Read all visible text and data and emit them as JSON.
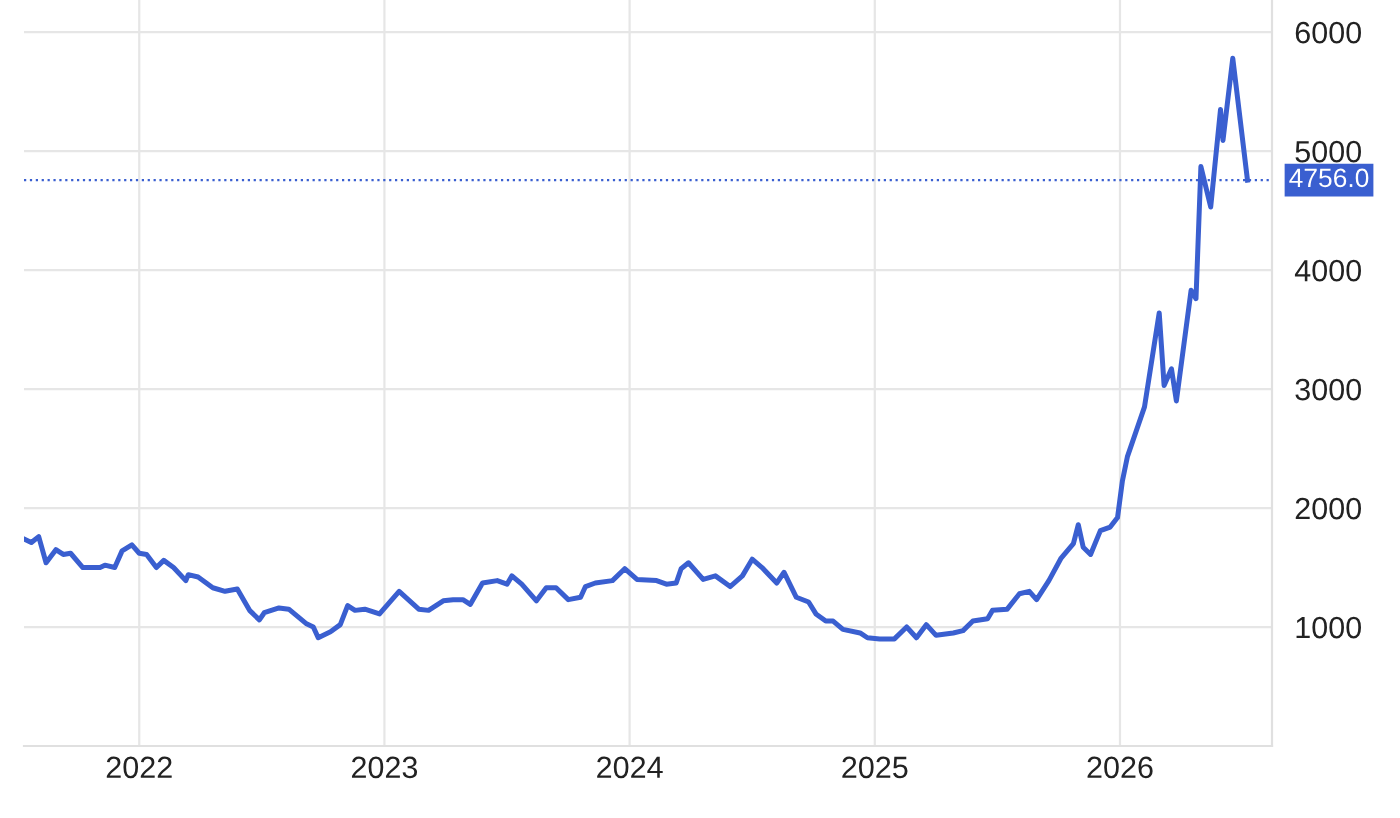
{
  "chart_data": {
    "type": "line",
    "x": [
      2021.53,
      2021.56,
      2021.59,
      2021.62,
      2021.66,
      2021.69,
      2021.72,
      2021.77,
      2021.84,
      2021.86,
      2021.9,
      2021.93,
      2021.97,
      2022.0,
      2022.03,
      2022.07,
      2022.1,
      2022.14,
      2022.19,
      2022.2,
      2022.24,
      2022.3,
      2022.35,
      2022.4,
      2022.45,
      2022.49,
      2022.51,
      2022.57,
      2022.61,
      2022.68,
      2022.71,
      2022.73,
      2022.78,
      2022.82,
      2022.85,
      2022.88,
      2022.92,
      2022.98,
      2023.06,
      2023.14,
      2023.18,
      2023.24,
      2023.28,
      2023.32,
      2023.35,
      2023.4,
      2023.46,
      2023.5,
      2023.52,
      2023.56,
      2023.62,
      2023.66,
      2023.7,
      2023.75,
      2023.8,
      2023.82,
      2023.86,
      2023.93,
      2023.98,
      2024.03,
      2024.11,
      2024.15,
      2024.19,
      2024.21,
      2024.24,
      2024.3,
      2024.35,
      2024.41,
      2024.46,
      2024.5,
      2024.54,
      2024.6,
      2024.63,
      2024.68,
      2024.73,
      2024.76,
      2024.8,
      2024.83,
      2024.87,
      2024.94,
      2024.97,
      2025.02,
      2025.08,
      2025.13,
      2025.17,
      2025.21,
      2025.25,
      2025.32,
      2025.36,
      2025.4,
      2025.46,
      2025.48,
      2025.54,
      2025.59,
      2025.63,
      2025.66,
      2025.71,
      2025.76,
      2025.81,
      2025.83,
      2025.85,
      2025.88,
      2025.92,
      2025.96,
      2025.99,
      2026.01,
      2026.03,
      2026.1,
      2026.16,
      2026.18,
      2026.21,
      2026.23,
      2026.29,
      2026.31,
      2026.33,
      2026.37,
      2026.41,
      2026.42,
      2026.46,
      2026.52
    ],
    "series": [
      {
        "color": "#3a5fd0",
        "values": [
          1740,
          1710,
          1760,
          1540,
          1650,
          1610,
          1620,
          1500,
          1500,
          1520,
          1500,
          1640,
          1690,
          1620,
          1610,
          1500,
          1560,
          1500,
          1390,
          1440,
          1420,
          1330,
          1300,
          1320,
          1140,
          1060,
          1120,
          1160,
          1150,
          1030,
          1000,
          910,
          960,
          1020,
          1180,
          1140,
          1150,
          1110,
          1300,
          1150,
          1140,
          1220,
          1230,
          1230,
          1190,
          1370,
          1390,
          1360,
          1430,
          1360,
          1220,
          1330,
          1330,
          1230,
          1250,
          1340,
          1370,
          1390,
          1490,
          1400,
          1390,
          1360,
          1370,
          1490,
          1540,
          1400,
          1430,
          1340,
          1430,
          1570,
          1500,
          1370,
          1460,
          1250,
          1210,
          1110,
          1050,
          1050,
          980,
          950,
          910,
          900,
          900,
          1000,
          910,
          1020,
          930,
          950,
          970,
          1050,
          1070,
          1140,
          1150,
          1280,
          1300,
          1230,
          1390,
          1580,
          1700,
          1860,
          1670,
          1610,
          1810,
          1840,
          1920,
          2230,
          2430,
          2850,
          3640,
          3030,
          3170,
          2900,
          3830,
          3760,
          4870,
          4530,
          5350,
          5090,
          5780,
          4756
        ]
      }
    ],
    "xlim": [
      2021.53,
      2026.62
    ],
    "xticks": [
      2022,
      2023,
      2024,
      2025,
      2026
    ],
    "ylim": [
      0,
      6270
    ],
    "yticks": [
      1000,
      2000,
      3000,
      4000,
      5000,
      6000
    ],
    "ref_lines": [
      {
        "axis": "y",
        "value": 4756,
        "label": "4756.0",
        "color": "#3a5fd0",
        "line_style": "dotted"
      }
    ],
    "grid": true,
    "marker": "none",
    "line_style": "solid"
  }
}
